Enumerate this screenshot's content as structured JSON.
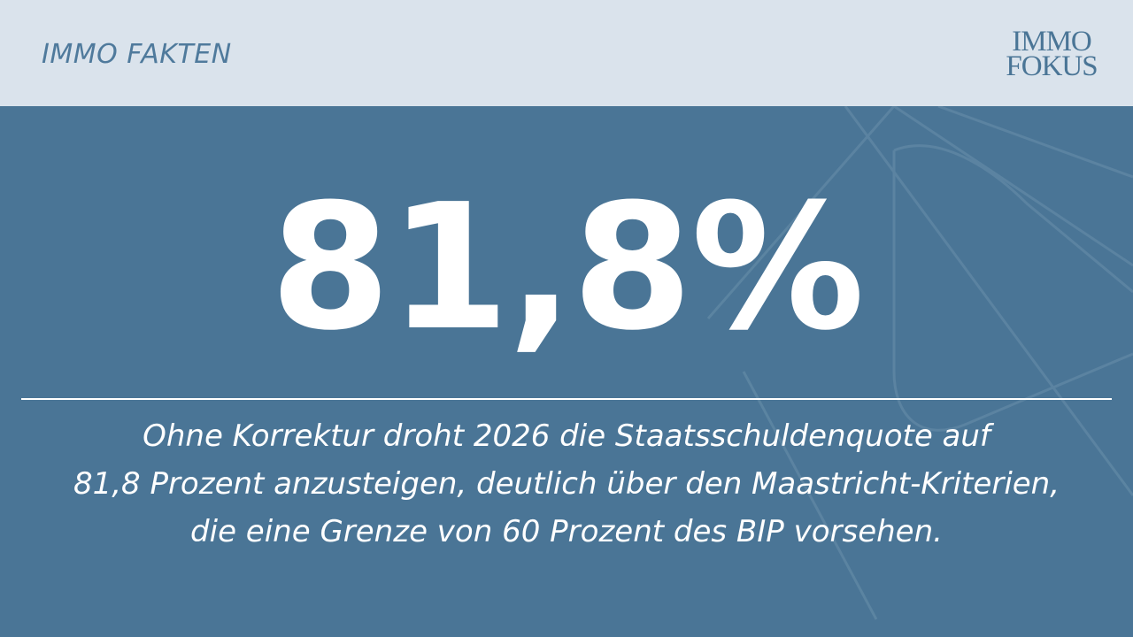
{
  "header": {
    "section_label": "IMMO FAKTEN",
    "logo": {
      "line1": "IMMO",
      "line2": "FOKUS"
    }
  },
  "main": {
    "headline_value": "81,8%",
    "caption_lines": [
      "Ohne Korrektur droht 2026 die Staatsschuldenquote auf",
      "81,8 Prozent anzusteigen, deutlich über den Maastricht-Kriterien,",
      "die eine Grenze von 60 Prozent des BIP vorsehen."
    ]
  },
  "colors": {
    "background": "#4a7596",
    "header_background": "#dae3ec",
    "accent": "#4f7a9c",
    "text": "#ffffff"
  }
}
